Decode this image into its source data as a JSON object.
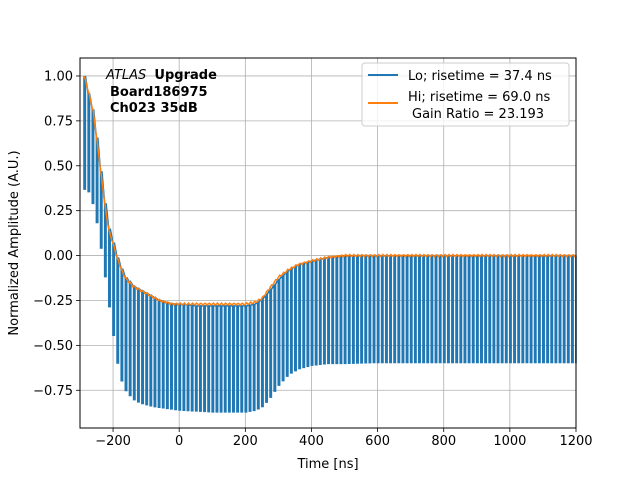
{
  "chart_data": {
    "type": "line",
    "xlabel": "Time [ns]",
    "ylabel": "Normalized Amplitude (A.U.)",
    "xlim": [
      -300,
      1200
    ],
    "ylim": [
      -0.96,
      1.1
    ],
    "xticks": [
      -200,
      0,
      200,
      400,
      600,
      800,
      1000,
      1200
    ],
    "yticks": [
      -0.75,
      -0.5,
      -0.25,
      0.0,
      0.25,
      0.5,
      0.75,
      1.0
    ],
    "xtick_labels": [
      "−200",
      "0",
      "200",
      "400",
      "600",
      "800",
      "1000",
      "1200"
    ],
    "ytick_labels": [
      "−0.75",
      "−0.50",
      "−0.25",
      "0.00",
      "0.25",
      "0.50",
      "0.75",
      "1.00"
    ],
    "grid": true,
    "legend_position": "top-right",
    "annotation": {
      "experiment": "ATLAS",
      "tag": "Upgrade",
      "board": "Board186975",
      "channel": "Ch023 35dB"
    },
    "series": [
      {
        "name": "Lo; risetime = 37.4 ns",
        "color": "#1f77b4",
        "style": "comb",
        "sample_period_ns": 12.5,
        "envelope_top": {
          "x": [
            -288,
            -280,
            -270,
            -260,
            -250,
            -240,
            -230,
            -220,
            -210,
            -200,
            -190,
            -180,
            -170,
            -160,
            -150,
            -140,
            -130,
            -120,
            -110,
            -100,
            -90,
            -80,
            -60,
            -40,
            -20,
            0,
            50,
            100,
            150,
            200,
            230,
            250,
            270,
            300,
            330,
            360,
            400,
            450,
            500,
            600,
            800,
            1000,
            1200
          ],
          "y": [
            1.0,
            0.93,
            0.87,
            0.79,
            0.65,
            0.5,
            0.35,
            0.22,
            0.12,
            0.07,
            0.0,
            -0.05,
            -0.1,
            -0.13,
            -0.15,
            -0.17,
            -0.18,
            -0.19,
            -0.2,
            -0.21,
            -0.22,
            -0.23,
            -0.25,
            -0.26,
            -0.27,
            -0.27,
            -0.28,
            -0.28,
            -0.28,
            -0.28,
            -0.27,
            -0.24,
            -0.2,
            -0.13,
            -0.08,
            -0.05,
            -0.03,
            -0.01,
            0.0,
            0.0,
            0.0,
            0.0,
            0.0
          ]
        },
        "envelope_bottom": {
          "x": [
            -288,
            -270,
            -250,
            -230,
            -220,
            -210,
            -200,
            -190,
            -180,
            -170,
            -160,
            -150,
            -140,
            -120,
            -100,
            -80,
            -60,
            -40,
            -20,
            0,
            50,
            100,
            150,
            200,
            230,
            250,
            270,
            300,
            330,
            360,
            400,
            450,
            500,
            600,
            800,
            1000,
            1200
          ],
          "y": [
            0.37,
            0.35,
            0.18,
            -0.05,
            -0.2,
            -0.32,
            -0.45,
            -0.58,
            -0.67,
            -0.73,
            -0.76,
            -0.78,
            -0.8,
            -0.82,
            -0.83,
            -0.84,
            -0.845,
            -0.85,
            -0.855,
            -0.86,
            -0.865,
            -0.87,
            -0.87,
            -0.87,
            -0.86,
            -0.84,
            -0.8,
            -0.72,
            -0.66,
            -0.63,
            -0.61,
            -0.6,
            -0.6,
            -0.595,
            -0.595,
            -0.595,
            -0.595
          ]
        }
      },
      {
        "name": "Hi; risetime = 69.0 ns",
        "extra_legend_text": "Gain Ratio = 23.193",
        "color": "#ff7f0e",
        "style": "line",
        "x": [
          -288,
          -280,
          -270,
          -260,
          -250,
          -240,
          -230,
          -220,
          -210,
          -200,
          -190,
          -180,
          -170,
          -160,
          -150,
          -140,
          -130,
          -120,
          -110,
          -100,
          -90,
          -80,
          -60,
          -40,
          -20,
          0,
          50,
          100,
          150,
          200,
          230,
          250,
          270,
          300,
          330,
          360,
          400,
          450,
          500,
          600,
          800,
          1000,
          1200
        ],
        "y": [
          1.0,
          0.95,
          0.88,
          0.8,
          0.66,
          0.51,
          0.36,
          0.22,
          0.12,
          0.07,
          0.0,
          -0.05,
          -0.1,
          -0.13,
          -0.15,
          -0.17,
          -0.18,
          -0.19,
          -0.2,
          -0.21,
          -0.22,
          -0.23,
          -0.25,
          -0.26,
          -0.27,
          -0.27,
          -0.27,
          -0.27,
          -0.27,
          -0.27,
          -0.26,
          -0.24,
          -0.19,
          -0.12,
          -0.08,
          -0.05,
          -0.03,
          -0.01,
          0.0,
          0.0,
          0.0,
          0.0,
          0.0
        ]
      }
    ]
  }
}
